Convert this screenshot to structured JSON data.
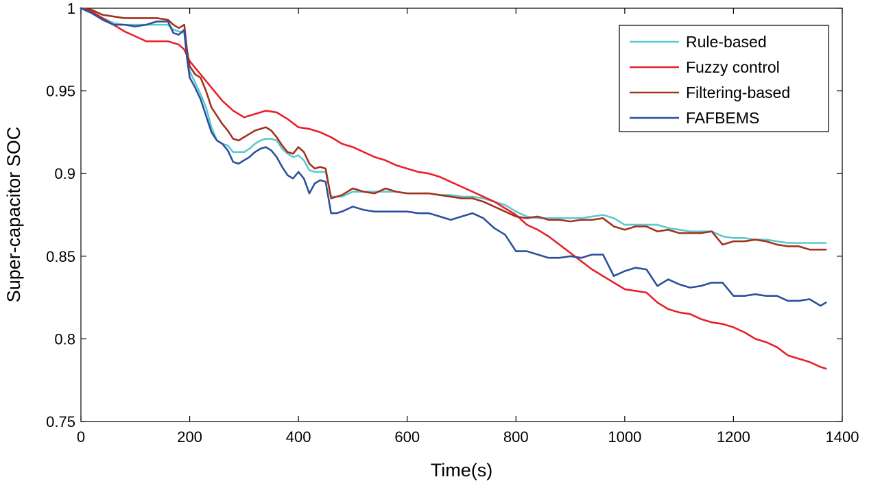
{
  "chart_data": {
    "type": "line",
    "title": "",
    "xlabel": "Time(s)",
    "ylabel": "Super-capacitor SOC",
    "xlim": [
      0,
      1400
    ],
    "ylim": [
      0.75,
      1.0
    ],
    "xticks": [
      0,
      200,
      400,
      600,
      800,
      1000,
      1200,
      1400
    ],
    "xtick_labels": [
      "0",
      "200",
      "400",
      "600",
      "800",
      "1000",
      "1200",
      "1400"
    ],
    "yticks": [
      0.75,
      0.8,
      0.85,
      0.9,
      0.95,
      1.0
    ],
    "ytick_labels": [
      "0.75",
      "0.8",
      "0.85",
      "0.9",
      "0.95",
      "1"
    ],
    "grid": false,
    "legend_position": "top-right",
    "series": [
      {
        "name": "Rule-based",
        "color": "#5cc8d0",
        "x": [
          0,
          20,
          40,
          60,
          80,
          100,
          120,
          140,
          160,
          170,
          180,
          190,
          195,
          200,
          210,
          220,
          230,
          240,
          250,
          260,
          270,
          280,
          290,
          300,
          310,
          320,
          330,
          340,
          350,
          360,
          370,
          380,
          390,
          400,
          410,
          420,
          430,
          440,
          450,
          460,
          470,
          480,
          500,
          520,
          540,
          560,
          580,
          600,
          620,
          640,
          660,
          680,
          700,
          720,
          740,
          760,
          780,
          800,
          820,
          840,
          860,
          880,
          900,
          920,
          940,
          960,
          980,
          1000,
          1020,
          1040,
          1060,
          1080,
          1100,
          1120,
          1140,
          1160,
          1180,
          1200,
          1220,
          1240,
          1260,
          1280,
          1300,
          1320,
          1340,
          1360,
          1370
        ],
        "y": [
          1.0,
          0.998,
          0.994,
          0.991,
          0.99,
          0.99,
          0.99,
          0.99,
          0.99,
          0.987,
          0.986,
          0.985,
          0.97,
          0.962,
          0.955,
          0.948,
          0.94,
          0.928,
          0.92,
          0.918,
          0.917,
          0.913,
          0.913,
          0.913,
          0.915,
          0.918,
          0.92,
          0.921,
          0.921,
          0.92,
          0.915,
          0.912,
          0.91,
          0.911,
          0.908,
          0.902,
          0.901,
          0.901,
          0.901,
          0.886,
          0.886,
          0.886,
          0.889,
          0.889,
          0.889,
          0.889,
          0.889,
          0.888,
          0.888,
          0.888,
          0.887,
          0.887,
          0.886,
          0.886,
          0.885,
          0.883,
          0.881,
          0.877,
          0.874,
          0.873,
          0.873,
          0.873,
          0.873,
          0.873,
          0.874,
          0.875,
          0.873,
          0.869,
          0.869,
          0.869,
          0.869,
          0.867,
          0.866,
          0.865,
          0.865,
          0.865,
          0.862,
          0.861,
          0.861,
          0.86,
          0.86,
          0.859,
          0.858,
          0.858,
          0.858,
          0.858,
          0.858
        ]
      },
      {
        "name": "Fuzzy control",
        "color": "#e8202a",
        "x": [
          0,
          20,
          40,
          60,
          80,
          100,
          120,
          140,
          160,
          180,
          190,
          200,
          220,
          240,
          260,
          280,
          300,
          320,
          340,
          360,
          380,
          400,
          420,
          440,
          460,
          480,
          500,
          520,
          540,
          560,
          580,
          600,
          620,
          640,
          660,
          680,
          700,
          720,
          740,
          760,
          780,
          800,
          820,
          840,
          860,
          880,
          900,
          920,
          940,
          960,
          980,
          1000,
          1020,
          1040,
          1060,
          1080,
          1100,
          1120,
          1140,
          1160,
          1180,
          1200,
          1220,
          1240,
          1260,
          1280,
          1300,
          1320,
          1340,
          1360,
          1370
        ],
        "y": [
          1.0,
          0.998,
          0.994,
          0.99,
          0.986,
          0.983,
          0.98,
          0.98,
          0.98,
          0.978,
          0.975,
          0.968,
          0.96,
          0.952,
          0.944,
          0.938,
          0.934,
          0.936,
          0.938,
          0.937,
          0.933,
          0.928,
          0.927,
          0.925,
          0.922,
          0.918,
          0.916,
          0.913,
          0.91,
          0.908,
          0.905,
          0.903,
          0.901,
          0.9,
          0.898,
          0.895,
          0.892,
          0.889,
          0.886,
          0.883,
          0.879,
          0.875,
          0.869,
          0.866,
          0.862,
          0.857,
          0.852,
          0.847,
          0.842,
          0.838,
          0.834,
          0.83,
          0.829,
          0.828,
          0.822,
          0.818,
          0.816,
          0.815,
          0.812,
          0.81,
          0.809,
          0.807,
          0.804,
          0.8,
          0.798,
          0.795,
          0.79,
          0.788,
          0.786,
          0.783,
          0.782
        ]
      },
      {
        "name": "Filtering-based",
        "color": "#a3321c",
        "x": [
          0,
          20,
          40,
          60,
          80,
          100,
          120,
          140,
          160,
          170,
          180,
          190,
          195,
          200,
          210,
          220,
          230,
          240,
          250,
          260,
          270,
          280,
          290,
          300,
          310,
          320,
          330,
          340,
          350,
          360,
          370,
          380,
          390,
          400,
          410,
          420,
          430,
          440,
          450,
          460,
          470,
          480,
          500,
          520,
          540,
          560,
          580,
          600,
          620,
          640,
          660,
          680,
          700,
          720,
          740,
          760,
          780,
          800,
          820,
          840,
          860,
          880,
          900,
          920,
          940,
          960,
          980,
          1000,
          1020,
          1040,
          1060,
          1080,
          1100,
          1120,
          1140,
          1160,
          1180,
          1200,
          1220,
          1240,
          1260,
          1280,
          1300,
          1320,
          1340,
          1360,
          1370
        ],
        "y": [
          1.0,
          0.999,
          0.996,
          0.995,
          0.994,
          0.994,
          0.994,
          0.994,
          0.993,
          0.99,
          0.988,
          0.99,
          0.975,
          0.965,
          0.96,
          0.958,
          0.95,
          0.94,
          0.935,
          0.93,
          0.926,
          0.921,
          0.92,
          0.922,
          0.924,
          0.926,
          0.927,
          0.928,
          0.926,
          0.922,
          0.917,
          0.913,
          0.912,
          0.916,
          0.913,
          0.906,
          0.903,
          0.904,
          0.903,
          0.885,
          0.886,
          0.887,
          0.891,
          0.889,
          0.888,
          0.891,
          0.889,
          0.888,
          0.888,
          0.888,
          0.887,
          0.886,
          0.885,
          0.885,
          0.883,
          0.88,
          0.877,
          0.874,
          0.873,
          0.874,
          0.872,
          0.872,
          0.871,
          0.872,
          0.872,
          0.873,
          0.868,
          0.866,
          0.868,
          0.868,
          0.865,
          0.866,
          0.864,
          0.864,
          0.864,
          0.865,
          0.857,
          0.859,
          0.859,
          0.86,
          0.859,
          0.857,
          0.856,
          0.856,
          0.854,
          0.854,
          0.854
        ]
      },
      {
        "name": "FAFBEMS",
        "color": "#2d4f9c",
        "x": [
          0,
          20,
          40,
          60,
          80,
          100,
          120,
          140,
          160,
          170,
          180,
          190,
          195,
          200,
          210,
          220,
          230,
          240,
          250,
          260,
          270,
          280,
          290,
          300,
          310,
          320,
          330,
          340,
          350,
          360,
          370,
          380,
          390,
          400,
          410,
          420,
          430,
          440,
          450,
          460,
          470,
          480,
          500,
          520,
          540,
          560,
          580,
          600,
          620,
          640,
          660,
          680,
          700,
          720,
          740,
          760,
          780,
          800,
          820,
          840,
          860,
          880,
          900,
          920,
          940,
          960,
          980,
          1000,
          1020,
          1040,
          1060,
          1080,
          1100,
          1120,
          1140,
          1160,
          1180,
          1200,
          1220,
          1240,
          1260,
          1280,
          1300,
          1320,
          1340,
          1360,
          1370
        ],
        "y": [
          1.0,
          0.997,
          0.993,
          0.99,
          0.99,
          0.989,
          0.99,
          0.992,
          0.992,
          0.985,
          0.984,
          0.987,
          0.97,
          0.958,
          0.952,
          0.945,
          0.935,
          0.925,
          0.92,
          0.918,
          0.914,
          0.907,
          0.906,
          0.908,
          0.91,
          0.913,
          0.915,
          0.916,
          0.914,
          0.91,
          0.904,
          0.899,
          0.897,
          0.901,
          0.897,
          0.888,
          0.894,
          0.896,
          0.895,
          0.876,
          0.876,
          0.877,
          0.88,
          0.878,
          0.877,
          0.877,
          0.877,
          0.877,
          0.876,
          0.876,
          0.874,
          0.872,
          0.874,
          0.876,
          0.873,
          0.867,
          0.863,
          0.853,
          0.853,
          0.851,
          0.849,
          0.849,
          0.85,
          0.849,
          0.851,
          0.851,
          0.838,
          0.841,
          0.843,
          0.842,
          0.832,
          0.836,
          0.833,
          0.831,
          0.832,
          0.834,
          0.834,
          0.826,
          0.826,
          0.827,
          0.826,
          0.826,
          0.823,
          0.823,
          0.824,
          0.82,
          0.822
        ]
      }
    ]
  }
}
